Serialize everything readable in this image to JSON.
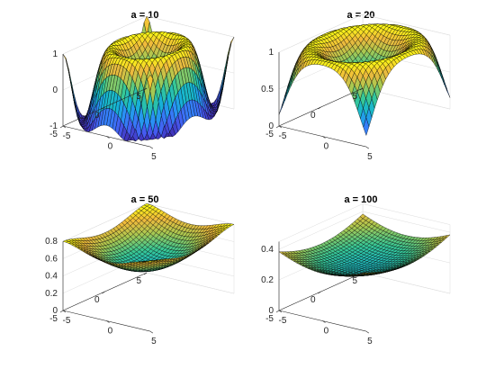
{
  "chart_data": [
    {
      "type": "surface",
      "title": "a = 10",
      "a": 10,
      "xlim": [
        -5,
        5
      ],
      "ylim": [
        -5,
        5
      ],
      "zlim": [
        -1,
        1
      ],
      "xticks": [
        "-5",
        "0",
        "5"
      ],
      "yticks": [
        "-5",
        "0",
        "5"
      ],
      "zticks": [
        "-1",
        "0",
        "1"
      ],
      "grid": true,
      "colormap": "parula"
    },
    {
      "type": "surface",
      "title": "a = 20",
      "a": 20,
      "xlim": [
        -5,
        5
      ],
      "ylim": [
        -5,
        5
      ],
      "zlim": [
        0,
        1
      ],
      "xticks": [
        "-5",
        "0",
        "5"
      ],
      "yticks": [
        "-5",
        "0",
        "5"
      ],
      "zticks": [
        "0",
        "0.5",
        "1"
      ],
      "grid": true,
      "colormap": "parula"
    },
    {
      "type": "surface",
      "title": "a = 50",
      "a": 50,
      "xlim": [
        -5,
        5
      ],
      "ylim": [
        -5,
        5
      ],
      "zlim": [
        0,
        0.8
      ],
      "xticks": [
        "-5",
        "0",
        "5"
      ],
      "yticks": [
        "-5",
        "0",
        "5"
      ],
      "zticks": [
        "0",
        "0.2",
        "0.4",
        "0.6",
        "0.8"
      ],
      "grid": true,
      "colormap": "parula"
    },
    {
      "type": "surface",
      "title": "a = 100",
      "a": 100,
      "xlim": [
        -5,
        5
      ],
      "ylim": [
        -5,
        5
      ],
      "zlim": [
        0,
        0.45
      ],
      "xticks": [
        "-5",
        "0",
        "5"
      ],
      "yticks": [
        "-5",
        "0",
        "5"
      ],
      "zticks": [
        "0",
        "0.2",
        "0.4"
      ],
      "grid": true,
      "colormap": "parula"
    }
  ]
}
